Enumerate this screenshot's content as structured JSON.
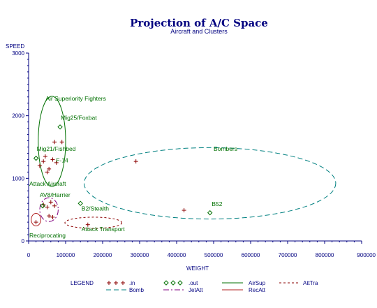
{
  "chart_data": {
    "type": "scatter",
    "title": "Projection of A/C Space",
    "subtitle": "Aircraft and Clusters",
    "xlabel": "WEIGHT",
    "ylabel": "SPEED",
    "xlim": [
      0,
      900000
    ],
    "ylim": [
      0,
      3000
    ],
    "x_ticks": [
      {
        "value": 0,
        "label": "0"
      },
      {
        "value": 100000,
        "label": "100000"
      },
      {
        "value": 200000,
        "label": "200000"
      },
      {
        "value": 300000,
        "label": "300000"
      },
      {
        "value": 400000,
        "label": "400000"
      },
      {
        "value": 500000,
        "label": "500000"
      },
      {
        "value": 600000,
        "label": "600000"
      },
      {
        "value": 700000,
        "label": "700000"
      },
      {
        "value": 800000,
        "label": "800000"
      },
      {
        "value": 900000,
        "label": "900000"
      }
    ],
    "y_ticks": [
      {
        "value": 0,
        "label": "0"
      },
      {
        "value": 1000,
        "label": "1000"
      },
      {
        "value": 2000,
        "label": "2000"
      },
      {
        "value": 3000,
        "label": "3000"
      }
    ],
    "grid": false,
    "legend_title": "LEGEND",
    "legend_placement": "bottom",
    "series": [
      {
        "name": ".in",
        "marker": "plus",
        "color": "#8b0000",
        "points": [
          {
            "x": 30000,
            "y": 1200
          },
          {
            "x": 40000,
            "y": 1270
          },
          {
            "x": 45000,
            "y": 1350
          },
          {
            "x": 50000,
            "y": 1100
          },
          {
            "x": 55000,
            "y": 1150
          },
          {
            "x": 65000,
            "y": 1300
          },
          {
            "x": 70000,
            "y": 1580
          },
          {
            "x": 90000,
            "y": 1580
          },
          {
            "x": 75000,
            "y": 1250
          },
          {
            "x": 40000,
            "y": 580
          },
          {
            "x": 50000,
            "y": 540
          },
          {
            "x": 60000,
            "y": 620
          },
          {
            "x": 70000,
            "y": 560
          },
          {
            "x": 55000,
            "y": 400
          },
          {
            "x": 65000,
            "y": 380
          },
          {
            "x": 20000,
            "y": 300
          },
          {
            "x": 290000,
            "y": 1270
          },
          {
            "x": 420000,
            "y": 490
          },
          {
            "x": 160000,
            "y": 260
          }
        ]
      },
      {
        "name": ".out",
        "marker": "diamond",
        "color": "#007000",
        "points": [
          {
            "x": 85000,
            "y": 1820
          },
          {
            "x": 20000,
            "y": 1320
          },
          {
            "x": 140000,
            "y": 600
          },
          {
            "x": 490000,
            "y": 450
          },
          {
            "x": 38000,
            "y": 560
          }
        ]
      }
    ],
    "clusters": [
      {
        "name": "AirSup",
        "color": "#007000",
        "style": "solid",
        "cx": 63000,
        "cy": 1590,
        "rx": 37000,
        "ry": 720
      },
      {
        "name": "Bomb",
        "color": "#008080",
        "style": "dashed",
        "cx": 490000,
        "cy": 920,
        "rx": 340000,
        "ry": 570
      },
      {
        "name": "JetAtt",
        "color": "#800080",
        "style": "dashdot",
        "cx": 55000,
        "cy": 500,
        "rx": 25000,
        "ry": 190
      },
      {
        "name": "RecAtt",
        "color": "#b22222",
        "style": "solid",
        "cx": 20000,
        "cy": 340,
        "rx": 13000,
        "ry": 100
      },
      {
        "name": "AttTra",
        "color": "#8b0000",
        "style": "dotted",
        "cx": 175000,
        "cy": 290,
        "rx": 77000,
        "ry": 90
      }
    ],
    "annotations": [
      {
        "text": "Air Superiority Fighters",
        "x": 46000,
        "y": 2240
      },
      {
        "text": "Mig25/Foxbat",
        "x": 87000,
        "y": 1935
      },
      {
        "text": "Mig21/Fishbed",
        "x": 22000,
        "y": 1440
      },
      {
        "text": "F-14",
        "x": 74000,
        "y": 1255
      },
      {
        "text": "Attack Aircraft",
        "x": 2000,
        "y": 880
      },
      {
        "text": "AV8/Harrier",
        "x": 30000,
        "y": 705
      },
      {
        "text": "Bombers",
        "x": 500000,
        "y": 1440
      },
      {
        "text": "B2/Stealth",
        "x": 143000,
        "y": 485
      },
      {
        "text": "B52",
        "x": 495000,
        "y": 555
      },
      {
        "text": "Attack Transport",
        "x": 143000,
        "y": 155
      },
      {
        "text": "Reciprocating",
        "x": 2000,
        "y": 55
      }
    ],
    "legend": [
      {
        "label": ".in",
        "kind": "marker",
        "marker": "plus",
        "color": "#8b0000"
      },
      {
        "label": ".out",
        "kind": "marker",
        "marker": "diamond",
        "color": "#007000"
      },
      {
        "label": "AirSup",
        "kind": "line",
        "style": "solid",
        "color": "#007000"
      },
      {
        "label": "AttTra",
        "kind": "line",
        "style": "dotted",
        "color": "#8b0000"
      },
      {
        "label": "Bomb",
        "kind": "line",
        "style": "dashed",
        "color": "#008080"
      },
      {
        "label": "JetAtt",
        "kind": "line",
        "style": "dashdot",
        "color": "#800080"
      },
      {
        "label": "RecAtt",
        "kind": "line",
        "style": "solid",
        "color": "#b22222"
      }
    ]
  }
}
